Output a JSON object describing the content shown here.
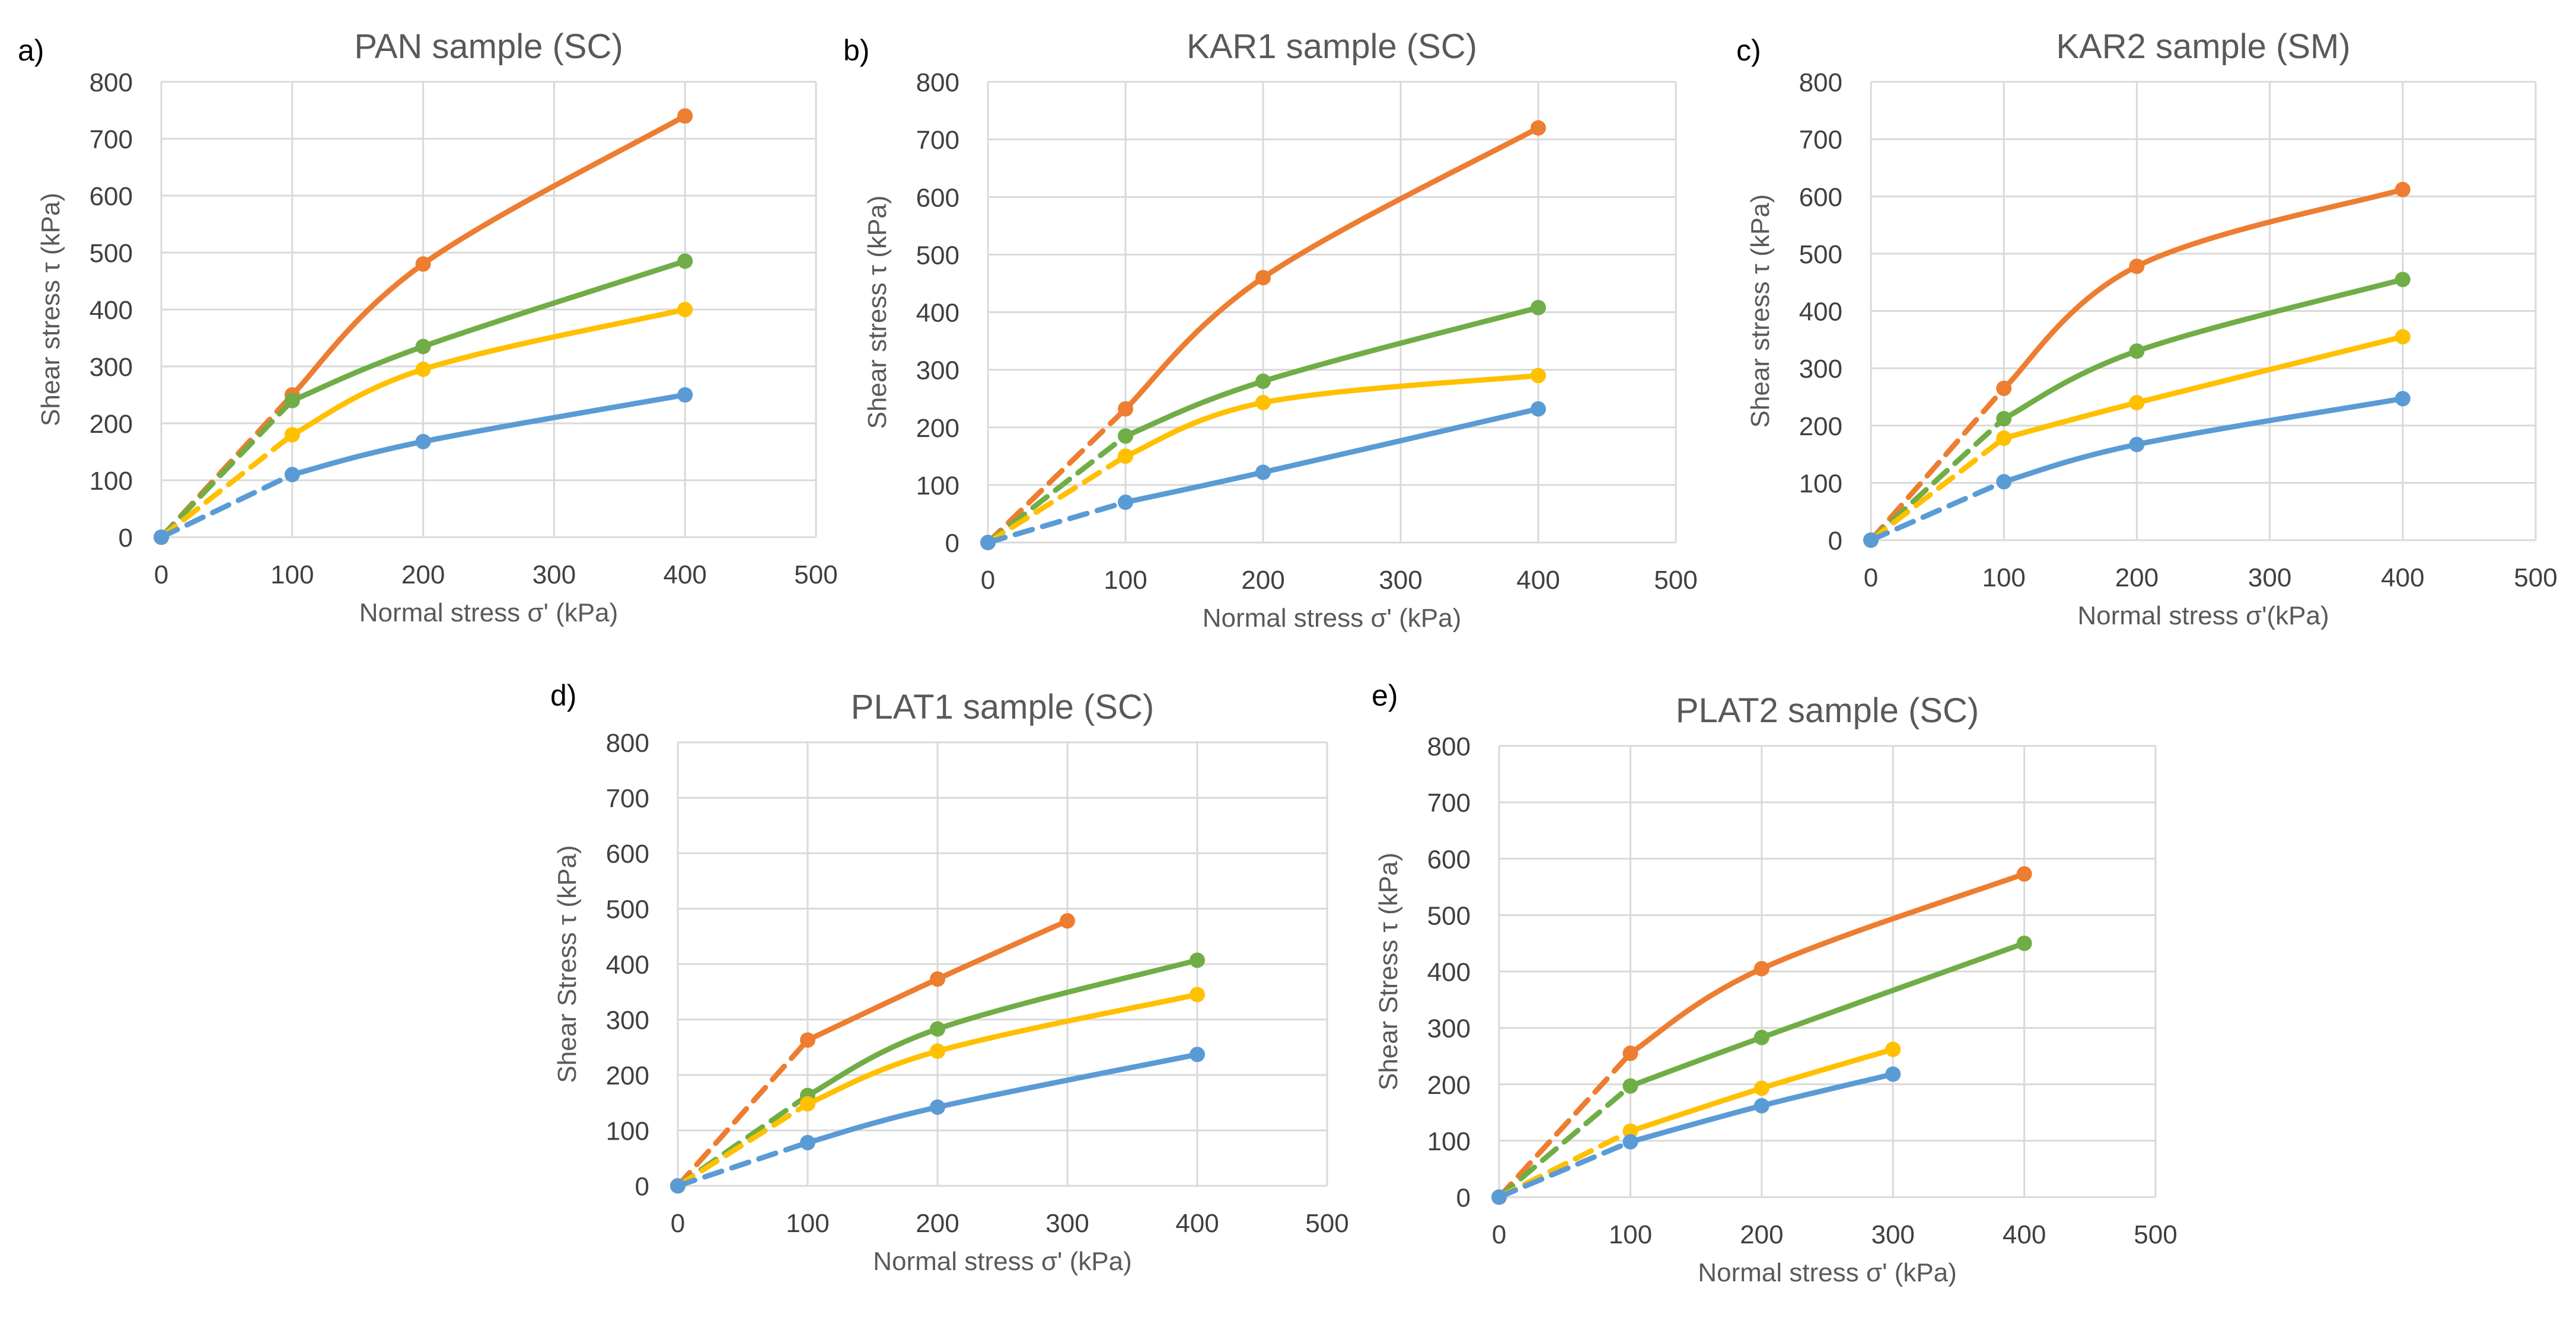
{
  "figure": {
    "description_free": true
  },
  "colors": {
    "blue": "#5B9BD5",
    "orange": "#ED7D31",
    "green": "#70AD47",
    "yellow": "#FFC000",
    "text": "#595959",
    "grid": "#D9D9D9"
  },
  "chart_data": [
    {
      "type": "line",
      "panel_label": "a)",
      "title": "PAN sample (SC)",
      "xlabel": "Normal stress σ' (kPa)",
      "ylabel": "Shear stress τ (kPa)",
      "xlim": [
        0,
        500
      ],
      "ylim": [
        0,
        800
      ],
      "xticks": [
        "0",
        "100",
        "200",
        "300",
        "400",
        "500"
      ],
      "yticks": [
        "0",
        "100",
        "200",
        "300",
        "400",
        "500",
        "600",
        "700",
        "800"
      ],
      "grid": true,
      "series": [
        {
          "color": "orange",
          "x": [
            0,
            100,
            200,
            400
          ],
          "values": [
            0,
            250,
            480,
            740
          ]
        },
        {
          "color": "green",
          "x": [
            0,
            100,
            200,
            400
          ],
          "values": [
            0,
            240,
            335,
            485
          ]
        },
        {
          "color": "yellow",
          "x": [
            0,
            100,
            200,
            400
          ],
          "values": [
            0,
            180,
            295,
            400
          ]
        },
        {
          "color": "blue",
          "x": [
            0,
            100,
            200,
            400
          ],
          "values": [
            0,
            110,
            168,
            250
          ]
        }
      ]
    },
    {
      "type": "line",
      "panel_label": "b)",
      "title": "KAR1 sample (SC)",
      "xlabel": "Normal stress σ' (kPa)",
      "ylabel": "Shear stress τ (kPa)",
      "xlim": [
        0,
        500
      ],
      "ylim": [
        0,
        800
      ],
      "xticks": [
        "0",
        "100",
        "200",
        "300",
        "400",
        "500"
      ],
      "yticks": [
        "0",
        "100",
        "200",
        "300",
        "400",
        "500",
        "600",
        "700",
        "800"
      ],
      "grid": true,
      "series": [
        {
          "color": "orange",
          "x": [
            0,
            100,
            200,
            400
          ],
          "values": [
            0,
            232,
            460,
            720
          ]
        },
        {
          "color": "green",
          "x": [
            0,
            100,
            200,
            400
          ],
          "values": [
            0,
            185,
            280,
            408
          ]
        },
        {
          "color": "yellow",
          "x": [
            0,
            100,
            200,
            400
          ],
          "values": [
            0,
            150,
            243,
            290
          ]
        },
        {
          "color": "blue",
          "x": [
            0,
            100,
            200,
            400
          ],
          "values": [
            0,
            70,
            122,
            232
          ]
        }
      ]
    },
    {
      "type": "line",
      "panel_label": "c)",
      "title": "KAR2 sample (SM)",
      "xlabel": "Normal stress σ'(kPa)",
      "ylabel": "Shear stress τ (kPa)",
      "xlim": [
        0,
        500
      ],
      "ylim": [
        0,
        800
      ],
      "xticks": [
        "0",
        "100",
        "200",
        "300",
        "400",
        "500"
      ],
      "yticks": [
        "0",
        "100",
        "200",
        "300",
        "400",
        "500",
        "600",
        "700",
        "800"
      ],
      "grid": true,
      "series": [
        {
          "color": "orange",
          "x": [
            0,
            100,
            200,
            400
          ],
          "values": [
            0,
            265,
            478,
            612
          ]
        },
        {
          "color": "green",
          "x": [
            0,
            100,
            200,
            400
          ],
          "values": [
            0,
            212,
            330,
            455
          ]
        },
        {
          "color": "yellow",
          "x": [
            0,
            100,
            200,
            400
          ],
          "values": [
            0,
            178,
            240,
            355
          ]
        },
        {
          "color": "blue",
          "x": [
            0,
            100,
            200,
            400
          ],
          "values": [
            0,
            102,
            167,
            247
          ]
        }
      ]
    },
    {
      "type": "line",
      "panel_label": "d)",
      "title": "PLAT1 sample (SC)",
      "xlabel": "Normal stress σ' (kPa)",
      "ylabel": "Shear Stress τ (kPa)",
      "xlim": [
        0,
        500
      ],
      "ylim": [
        0,
        800
      ],
      "xticks": [
        "0",
        "100",
        "200",
        "300",
        "400",
        "500"
      ],
      "yticks": [
        "0",
        "100",
        "200",
        "300",
        "400",
        "500",
        "600",
        "700",
        "800"
      ],
      "grid": true,
      "series": [
        {
          "color": "orange",
          "x": [
            0,
            100,
            200,
            300
          ],
          "values": [
            0,
            263,
            373,
            478
          ]
        },
        {
          "color": "green",
          "x": [
            0,
            100,
            200,
            400
          ],
          "values": [
            0,
            163,
            283,
            407
          ]
        },
        {
          "color": "yellow",
          "x": [
            0,
            100,
            200,
            400
          ],
          "values": [
            0,
            148,
            243,
            345
          ]
        },
        {
          "color": "blue",
          "x": [
            0,
            100,
            200,
            400
          ],
          "values": [
            0,
            78,
            142,
            237
          ]
        }
      ]
    },
    {
      "type": "line",
      "panel_label": "e)",
      "title": "PLAT2 sample (SC)",
      "xlabel": "Normal stress σ' (kPa)",
      "ylabel": "Shear Stress τ (kPa)",
      "xlim": [
        0,
        500
      ],
      "ylim": [
        0,
        800
      ],
      "xticks": [
        "0",
        "100",
        "200",
        "300",
        "400",
        "500"
      ],
      "yticks": [
        "0",
        "100",
        "200",
        "300",
        "400",
        "500",
        "600",
        "700",
        "800"
      ],
      "grid": true,
      "series": [
        {
          "color": "orange",
          "x": [
            0,
            100,
            200,
            400
          ],
          "values": [
            0,
            255,
            405,
            573
          ]
        },
        {
          "color": "green",
          "x": [
            0,
            100,
            200,
            400
          ],
          "values": [
            0,
            197,
            283,
            450
          ]
        },
        {
          "color": "yellow",
          "x": [
            0,
            100,
            200,
            300
          ],
          "values": [
            0,
            117,
            193,
            262
          ]
        },
        {
          "color": "blue",
          "x": [
            0,
            100,
            200,
            300
          ],
          "values": [
            0,
            98,
            162,
            218
          ]
        }
      ]
    }
  ]
}
